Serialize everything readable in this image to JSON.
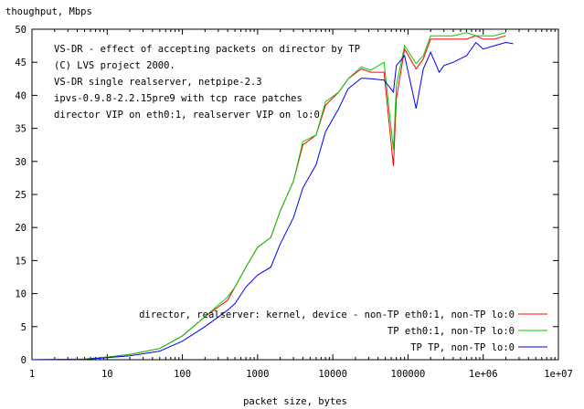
{
  "chart_data": {
    "type": "line",
    "ylabel": "thoughput, Mbps",
    "xlabel": "packet size, bytes",
    "x_scale": "log",
    "xlim": [
      1,
      10000000
    ],
    "ylim": [
      0,
      50
    ],
    "x_ticks": [
      1,
      10,
      100,
      1000,
      10000,
      100000,
      1000000,
      10000000
    ],
    "x_tick_labels": [
      "1",
      "10",
      "100",
      "1000",
      "10000",
      "100000",
      "1e+06",
      "1e+07"
    ],
    "y_ticks": [
      0,
      5,
      10,
      15,
      20,
      25,
      30,
      35,
      40,
      45,
      50
    ],
    "y_tick_labels": [
      "0",
      "5",
      "10",
      "15",
      "20",
      "25",
      "30",
      "35",
      "40",
      "45",
      "50"
    ],
    "annotations": [
      "VS-DR - effect of accepting packets on director by TP",
      "(C) LVS project 2000.",
      "VS-DR single realserver, netpipe-2.3",
      "ipvs-0.9.8-2.2.15pre9 with tcp race patches",
      "director VIP on eth0:1, realserver VIP on lo:0"
    ],
    "legend_position": "bottom-right",
    "series": [
      {
        "name": "director, realserver: kernel, device  - non-TP eth0:1, non-TP lo:0",
        "color": "#ff0000",
        "x": [
          1,
          5,
          10,
          20,
          50,
          100,
          200,
          400,
          500,
          700,
          1000,
          1500,
          2000,
          3000,
          4000,
          6000,
          8000,
          12000,
          16000,
          24000,
          32000,
          48000,
          64000,
          70000,
          90000,
          128000,
          160000,
          200000,
          260000,
          400000,
          600000,
          800000,
          1000000,
          1400000,
          2000000
        ],
        "y": [
          0,
          0.1,
          0.4,
          0.8,
          1.7,
          3.6,
          6.5,
          9.0,
          11.0,
          14.0,
          17.0,
          18.5,
          22.5,
          27.0,
          32.5,
          34.0,
          38.5,
          40.5,
          42.5,
          44.0,
          43.5,
          43.5,
          29.3,
          39.5,
          47.0,
          44.0,
          45.5,
          48.5,
          48.5,
          48.5,
          48.5,
          49.0,
          48.5,
          48.5,
          49.0
        ]
      },
      {
        "name": "TP eth0:1, non-TP lo:0",
        "color": "#00cc00",
        "x": [
          1,
          5,
          10,
          20,
          50,
          100,
          200,
          400,
          500,
          700,
          1000,
          1500,
          2000,
          3000,
          4000,
          6000,
          8000,
          12000,
          16000,
          24000,
          32000,
          48000,
          64000,
          70000,
          90000,
          128000,
          160000,
          200000,
          260000,
          400000,
          600000,
          800000,
          1000000,
          1400000,
          2000000
        ],
        "y": [
          0,
          0.1,
          0.4,
          0.8,
          1.7,
          3.6,
          6.5,
          9.5,
          11.0,
          14.0,
          17.0,
          18.5,
          22.5,
          27.0,
          33.0,
          34.0,
          39.0,
          40.5,
          42.5,
          44.3,
          43.8,
          45.0,
          31.8,
          41.5,
          47.5,
          44.8,
          46.0,
          49.0,
          49.0,
          49.0,
          49.5,
          49.0,
          49.0,
          49.0,
          49.5
        ]
      },
      {
        "name": "TP     TP, non-TP lo:0",
        "color": "#0000ff",
        "x": [
          1,
          5,
          10,
          20,
          50,
          100,
          200,
          400,
          500,
          700,
          1000,
          1500,
          2000,
          3000,
          4000,
          6000,
          8000,
          12000,
          16000,
          24000,
          32000,
          48000,
          64000,
          70000,
          90000,
          128000,
          160000,
          200000,
          260000,
          300000,
          400000,
          600000,
          800000,
          1000000,
          1400000,
          2000000,
          2500000
        ],
        "y": [
          0,
          0.05,
          0.3,
          0.6,
          1.3,
          2.8,
          5.0,
          7.5,
          8.5,
          11.0,
          12.8,
          14.0,
          17.5,
          21.5,
          26.0,
          29.5,
          34.5,
          38.0,
          41.0,
          42.6,
          42.5,
          42.3,
          40.5,
          44.5,
          46.0,
          38.0,
          44.0,
          46.5,
          43.5,
          44.5,
          45.0,
          46.0,
          48.0,
          47.0,
          47.5,
          48.0,
          47.8
        ]
      }
    ]
  }
}
